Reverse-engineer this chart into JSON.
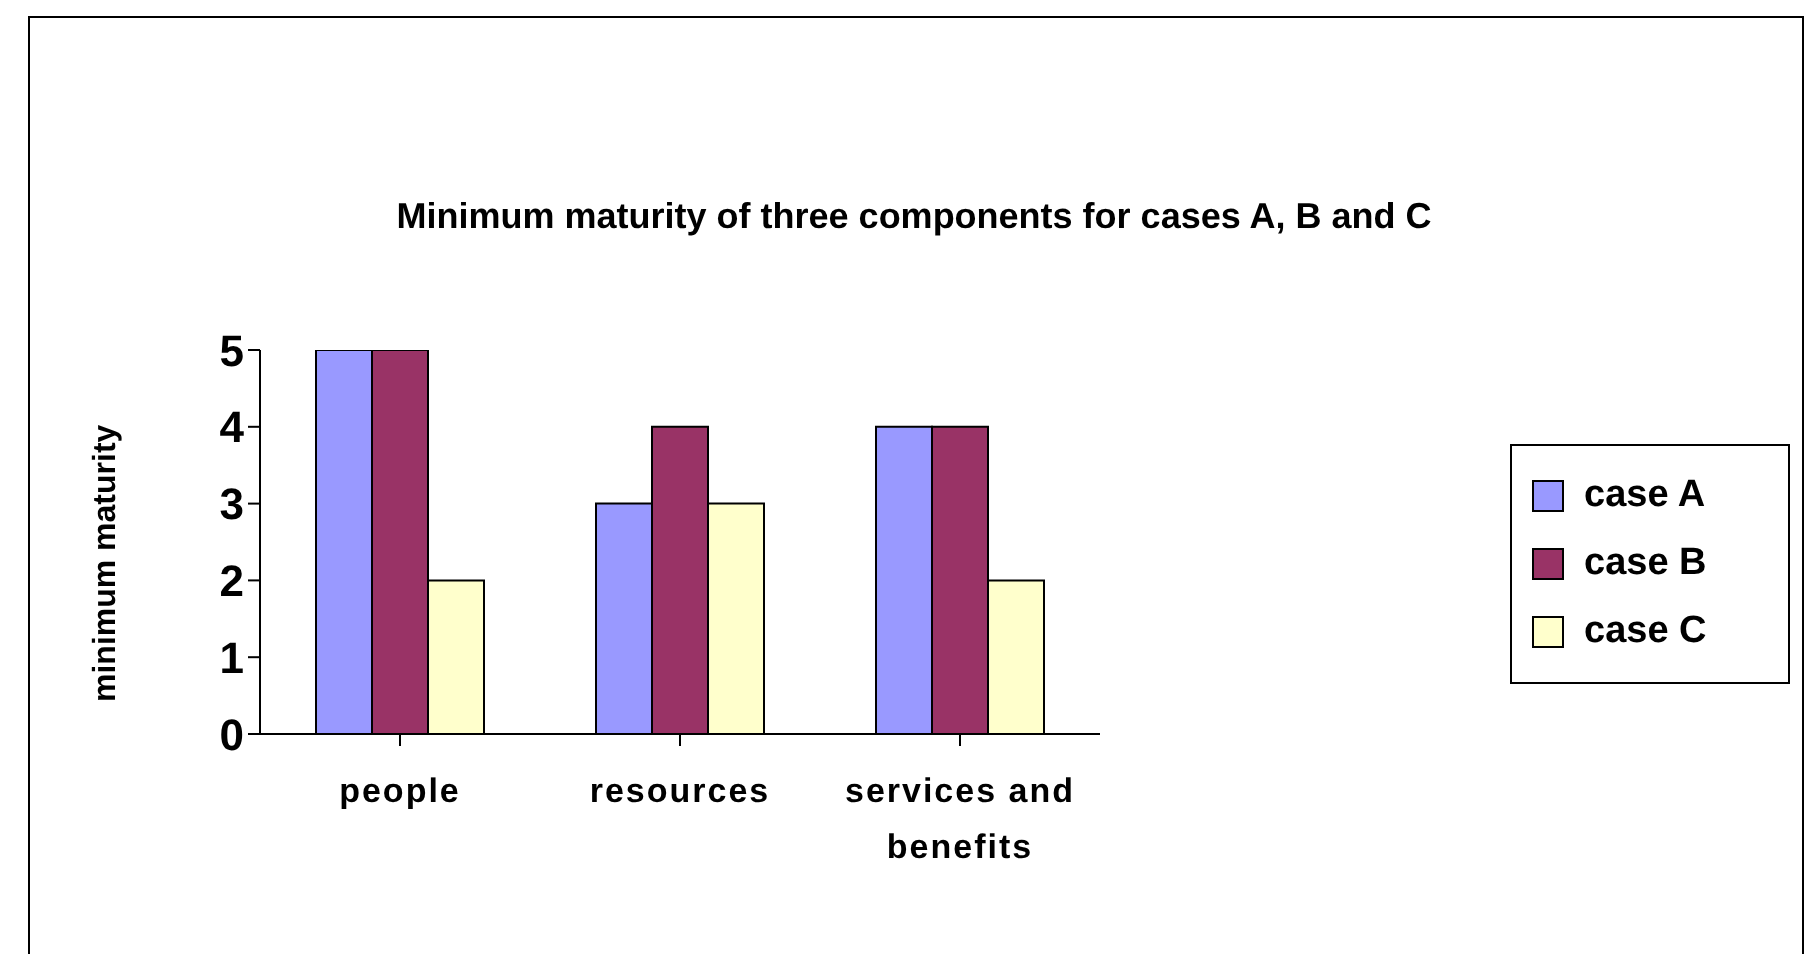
{
  "chart_data": {
    "type": "bar",
    "title": "Minimum maturity of three components for cases A, B and C",
    "ylabel": "minimum maturity",
    "categories": [
      "people",
      "resources",
      "services and benefits"
    ],
    "series": [
      {
        "name": "case A",
        "color": "#9999ff",
        "values": [
          5,
          3,
          4
        ]
      },
      {
        "name": "case B",
        "color": "#993366",
        "values": [
          5,
          4,
          4
        ]
      },
      {
        "name": "case C",
        "color": "#ffffcc",
        "values": [
          2,
          3,
          2
        ]
      }
    ],
    "ylim": [
      0,
      5
    ],
    "yticks": [
      0,
      1,
      2,
      3,
      4,
      5
    ],
    "grid": false,
    "legend": "right"
  }
}
